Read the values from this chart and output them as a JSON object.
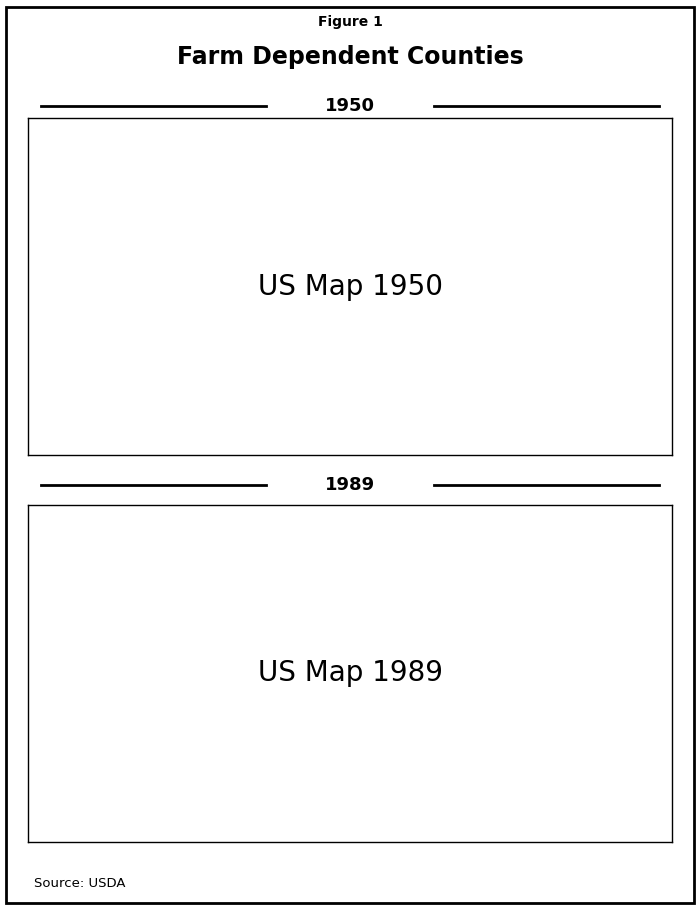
{
  "title_line1": "Figure 1",
  "title_line2": "Farm Dependent Counties",
  "label_1950": "1950",
  "label_1989": "1989",
  "source_text": "Source: USDA",
  "background_color": "#ffffff",
  "border_color": "#000000",
  "map_fill_dark": "#111111",
  "figsize": [
    7.0,
    9.1
  ],
  "dpi": 100,
  "seed_1950": 42,
  "seed_1989": 123
}
